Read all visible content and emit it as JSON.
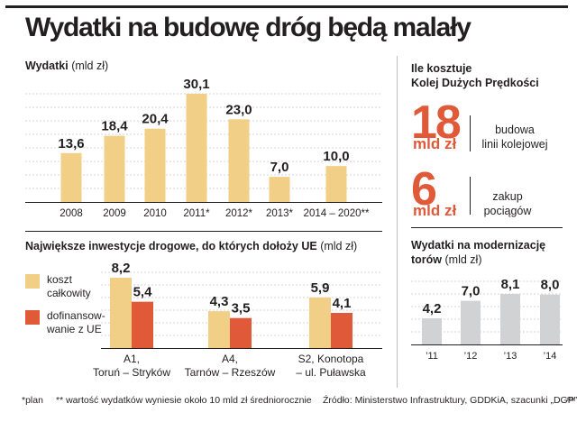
{
  "page": {
    "title": "Wydatki na budowę dróg będą malały",
    "footer_note_1": "*plan",
    "footer_note_2": "** wartość wydatków wyniesie około 10 mld zł średniorocznie",
    "source": "Źródło: Ministerstwo Infrastruktury, GDDKiA, szacunki „DGP”",
    "author_mark": "RM"
  },
  "colors": {
    "bar_yellow": "#f2cf86",
    "bar_orange": "#e05a3a",
    "bar_grey": "#d1d2d3",
    "text": "#231f20"
  },
  "hsr": {
    "title_line1": "Ile kosztuje",
    "title_line2": "Kolej Dużych Prędkości",
    "item1_value": "18",
    "item1_unit": "mld zł",
    "item1_desc_line1": "budowa",
    "item1_desc_line2": "linii kolejowej",
    "item2_value": "6",
    "item2_unit": "mld zł",
    "item2_desc_line1": "zakup",
    "item2_desc_line2": "pociągów"
  },
  "chart_data": [
    {
      "type": "bar",
      "title": "Wydatki",
      "unit": "(mld zł)",
      "categories": [
        "2008",
        "2009",
        "2010",
        "2011*",
        "2012*",
        "2013*",
        "2014 – 2020**"
      ],
      "values": [
        13.6,
        18.4,
        20.4,
        30.1,
        23.0,
        7.0,
        10.0
      ],
      "value_labels": [
        "13,6",
        "18,4",
        "20,4",
        "30,1",
        "23,0",
        "7,0",
        "10,0"
      ],
      "ylim": [
        0,
        30.1
      ],
      "grid": true,
      "color": "#f2cf86"
    },
    {
      "type": "bar",
      "title": "Największe inwestycje drogowe, do których dołoży UE",
      "unit": "(mld zł)",
      "categories": [
        [
          "A1,",
          "Toruń – Stryków"
        ],
        [
          "A4,",
          "Tarnów – Rzeszów"
        ],
        [
          "S2, Konotopa",
          "– ul. Puławska"
        ]
      ],
      "series": [
        {
          "name_lines": [
            "koszt",
            "całkowity"
          ],
          "values": [
            8.2,
            4.3,
            5.9
          ],
          "value_labels": [
            "8,2",
            "4,3",
            "5,9"
          ],
          "color": "#f2cf86"
        },
        {
          "name_lines": [
            "dofinansow-",
            "wanie z UE"
          ],
          "values": [
            5.4,
            3.5,
            4.1
          ],
          "value_labels": [
            "5,4",
            "3,5",
            "4,1"
          ],
          "color": "#e05a3a"
        }
      ],
      "ylim": [
        0,
        8.2
      ],
      "grid": true,
      "legend": "left"
    },
    {
      "type": "bar",
      "title_line1": "Wydatki na modernizację",
      "title_line2": "torów",
      "unit": "(mld zł)",
      "categories": [
        "’11",
        "’12",
        "’13",
        "’14"
      ],
      "values": [
        4.2,
        7.0,
        8.1,
        8.0
      ],
      "value_labels": [
        "4,2",
        "7,0",
        "8,1",
        "8,0"
      ],
      "ylim": [
        0,
        8.1
      ],
      "grid": true,
      "color": "#d1d2d3"
    }
  ]
}
